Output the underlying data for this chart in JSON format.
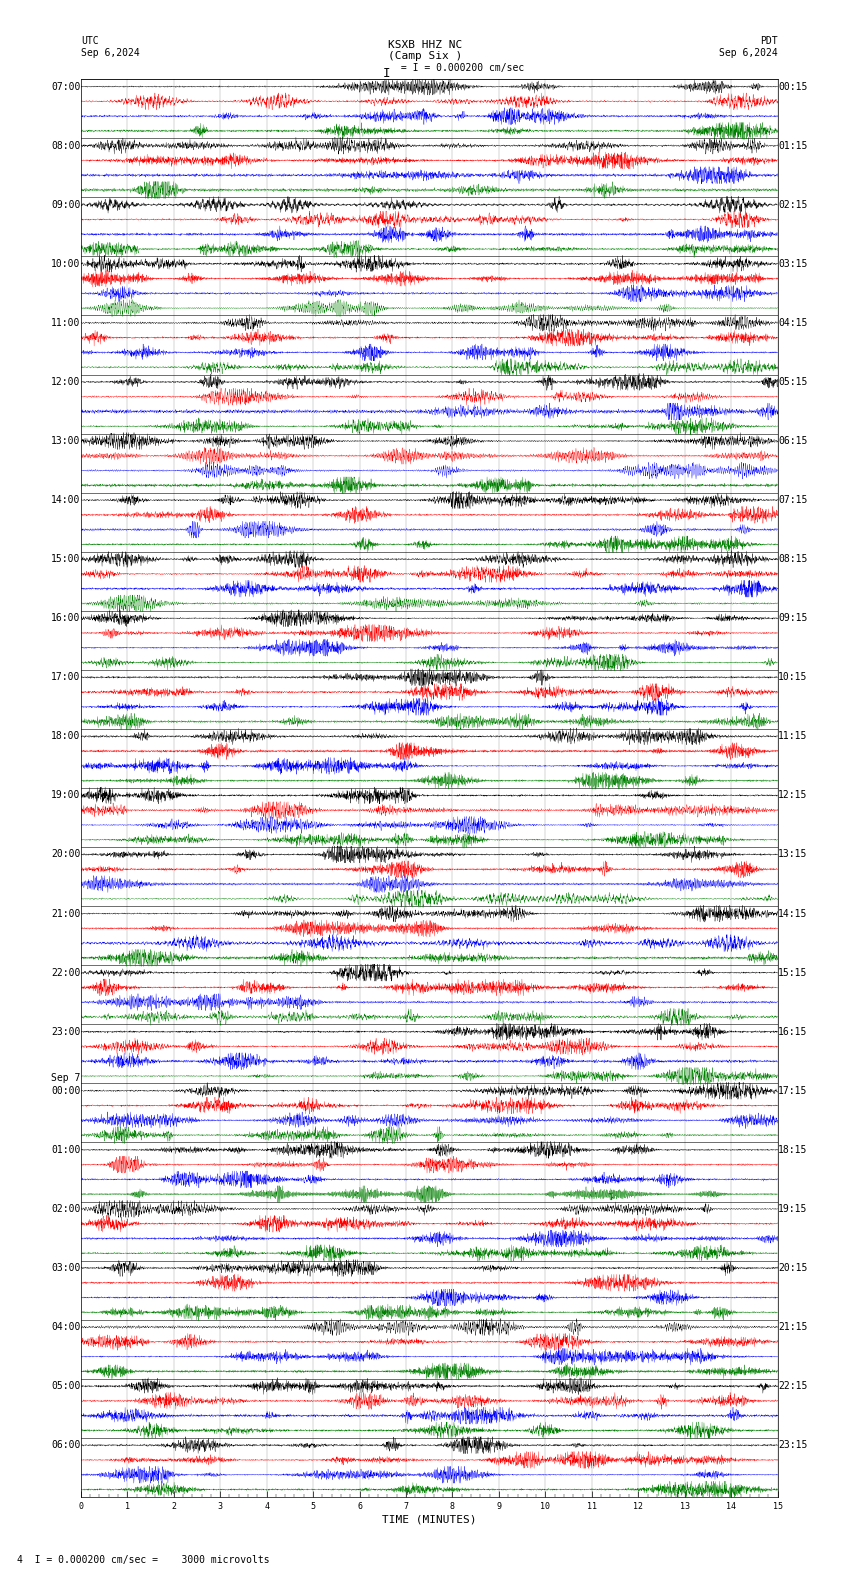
{
  "title_center_line1": "KSXB HHZ NC",
  "title_center_line2": "(Camp Six )",
  "title_left_line1": "UTC",
  "title_left_line2": "Sep 6,2024",
  "title_right_line1": "PDT",
  "title_right_line2": "Sep 6,2024",
  "scale_text": "I = 0.000200 cm/sec",
  "bottom_text": "4  I = 0.000200 cm/sec =    3000 microvolts",
  "xlabel": "TIME (MINUTES)",
  "x_ticks": [
    0,
    1,
    2,
    3,
    4,
    5,
    6,
    7,
    8,
    9,
    10,
    11,
    12,
    13,
    14,
    15
  ],
  "colors": [
    "black",
    "red",
    "blue",
    "green"
  ],
  "n_rows": 24,
  "traces_per_row": 4,
  "row_labels_left": [
    "07:00",
    "08:00",
    "09:00",
    "10:00",
    "11:00",
    "12:00",
    "13:00",
    "14:00",
    "15:00",
    "16:00",
    "17:00",
    "18:00",
    "19:00",
    "20:00",
    "21:00",
    "22:00",
    "23:00",
    "Sep 7",
    "01:00",
    "02:00",
    "03:00",
    "04:00",
    "05:00",
    "06:00"
  ],
  "row_labels_left2": [
    "",
    "",
    "",
    "",
    "",
    "",
    "",
    "",
    "",
    "",
    "",
    "",
    "",
    "",
    "",
    "",
    "",
    "00:00",
    "",
    "",
    "",
    "",
    "",
    ""
  ],
  "row_labels_right": [
    "00:15",
    "01:15",
    "02:15",
    "03:15",
    "04:15",
    "05:15",
    "06:15",
    "07:15",
    "08:15",
    "09:15",
    "10:15",
    "11:15",
    "12:15",
    "13:15",
    "14:15",
    "15:15",
    "16:15",
    "17:15",
    "18:15",
    "19:15",
    "20:15",
    "21:15",
    "22:15",
    "23:15"
  ],
  "background_color": "#ffffff",
  "grid_color": "#888888",
  "n_points": 3600,
  "amplitude_scale": 0.38,
  "fig_width": 8.5,
  "fig_height": 15.84,
  "dpi": 100,
  "font_size_title": 8,
  "font_size_labels": 7,
  "font_size_ticks": 6,
  "font_family": "monospace",
  "sep7_row": 17,
  "lw": 0.25
}
